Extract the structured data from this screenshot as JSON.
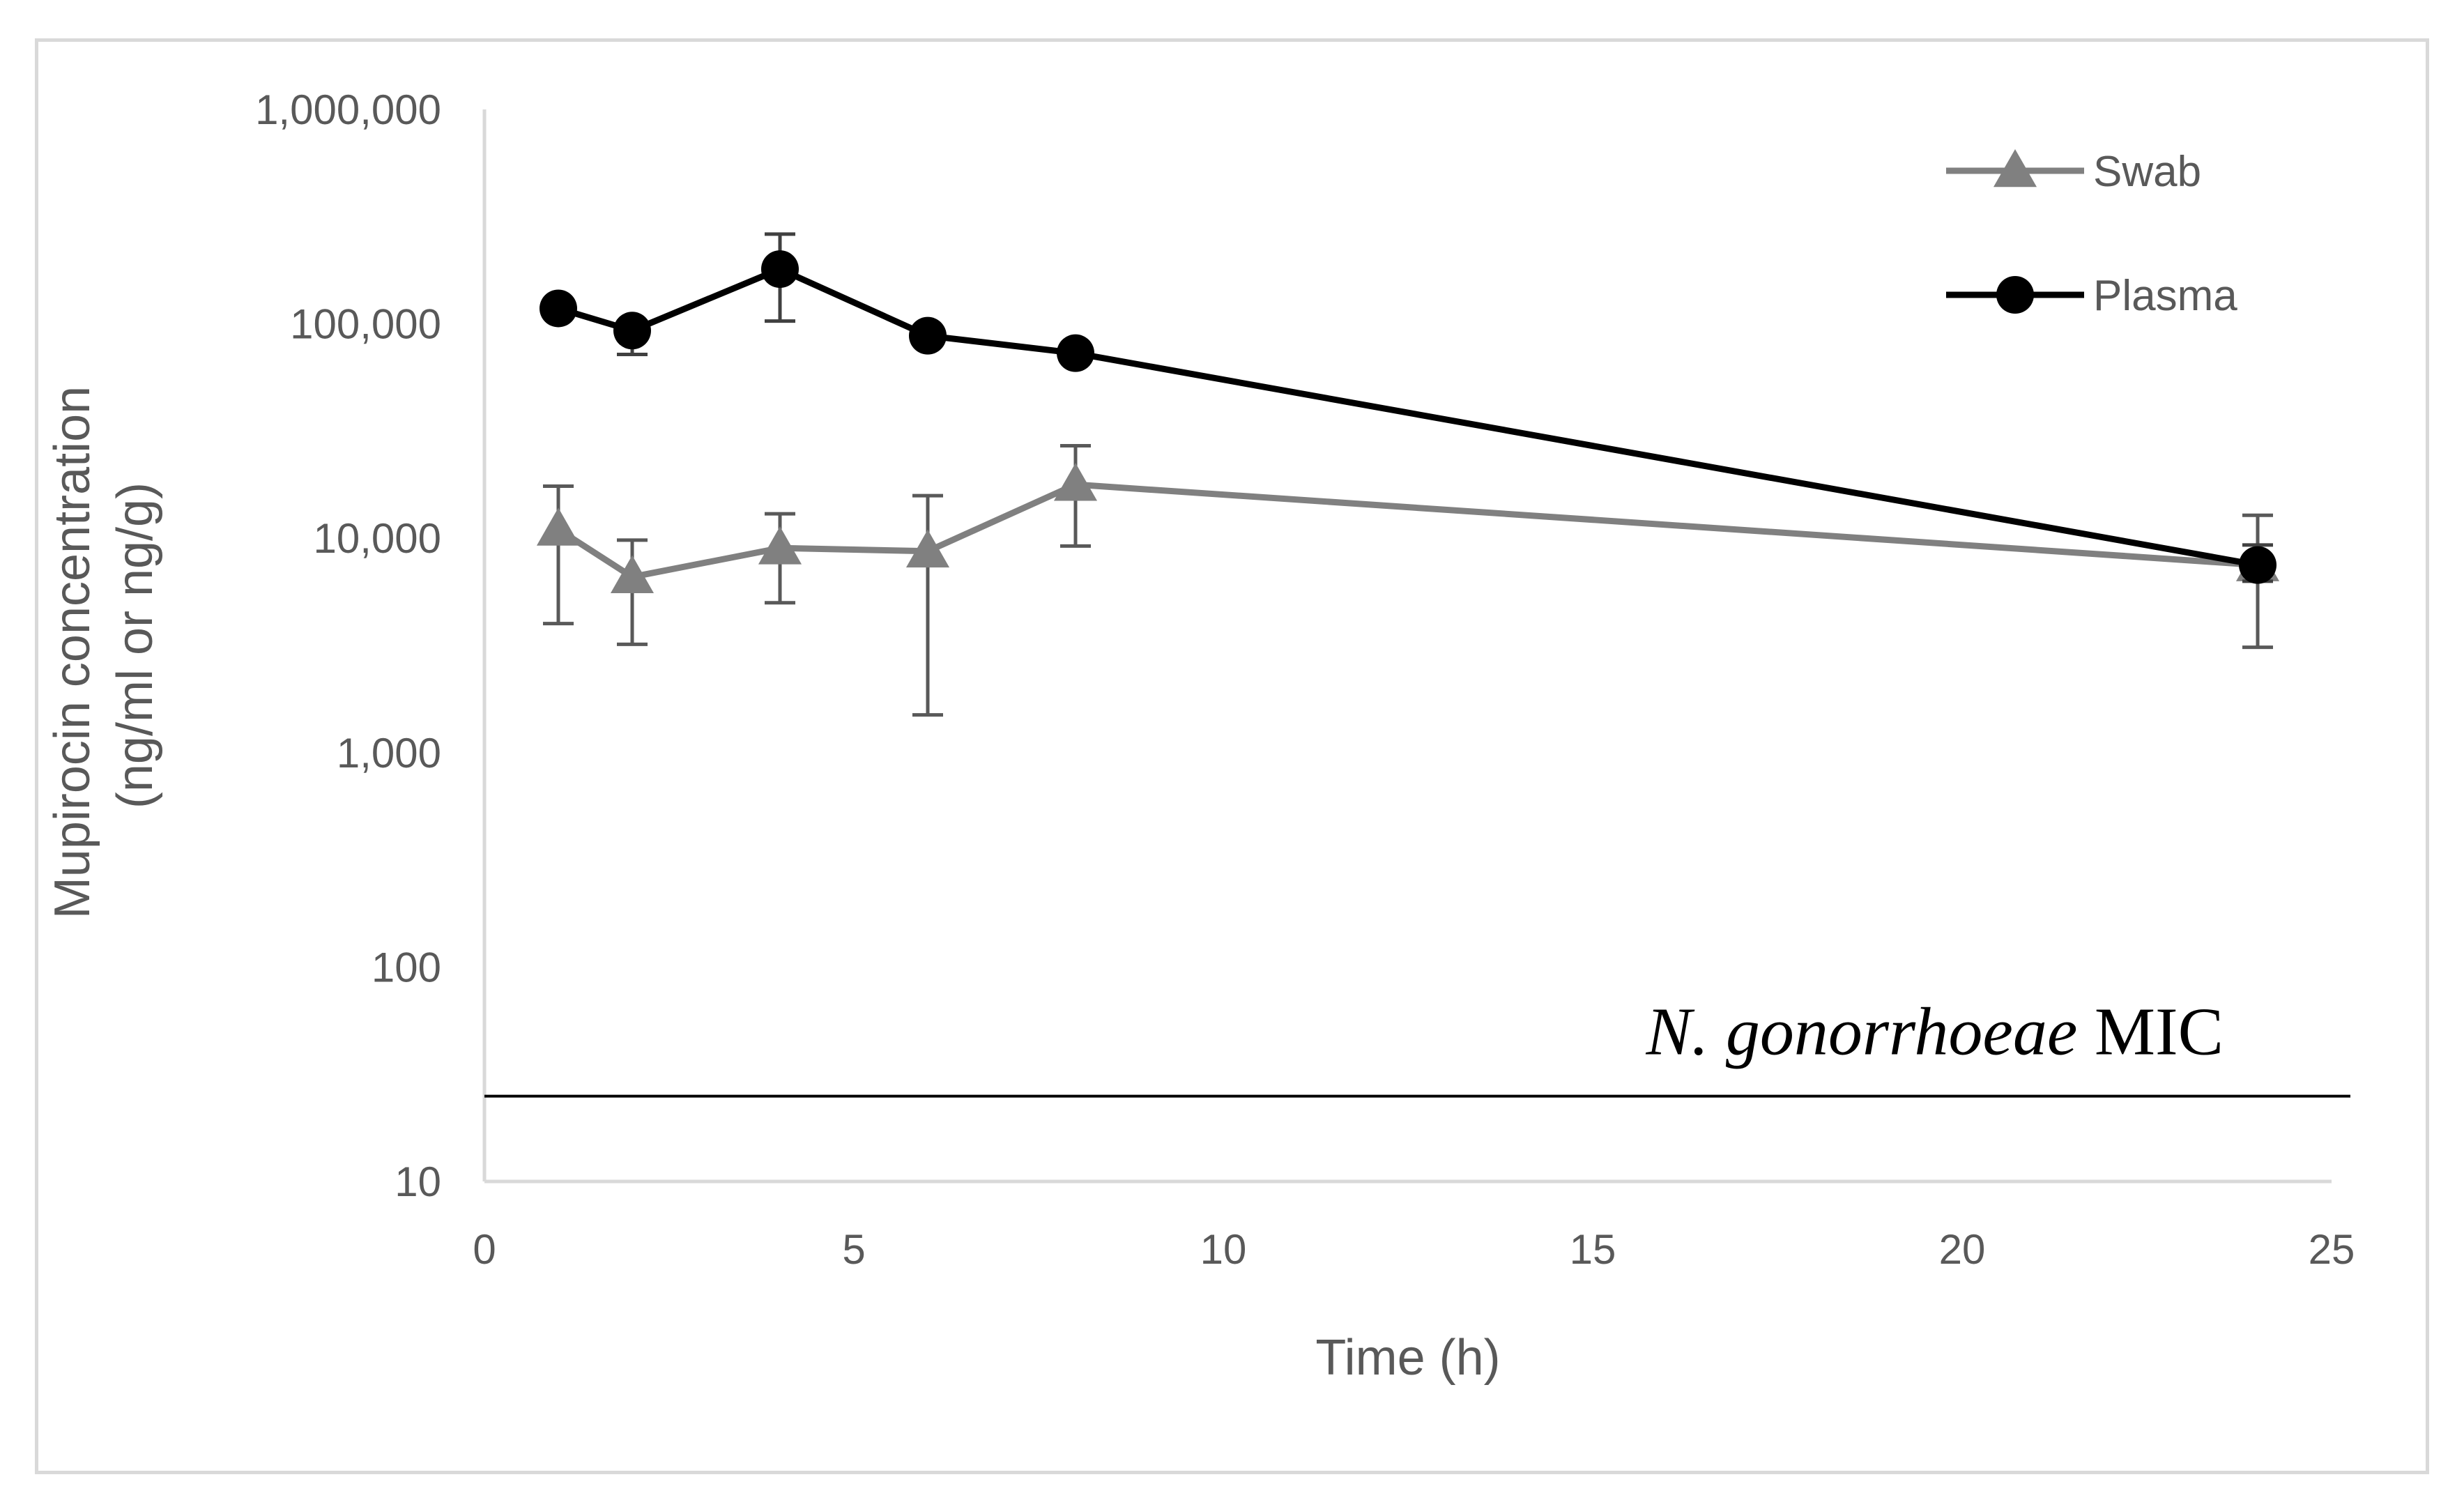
{
  "chart_data": {
    "type": "line",
    "title": "",
    "xlabel": "Time (h)",
    "ylabel_lines": [
      "Mupirocin concentration",
      "(ng/ml or ng/g)"
    ],
    "xlim": [
      0,
      25
    ],
    "ylim": [
      10,
      1000000
    ],
    "yscale": "log",
    "x_ticks": [
      0,
      5,
      10,
      15,
      20,
      25
    ],
    "x_tick_labels": [
      "0",
      "5",
      "10",
      "15",
      "20",
      "25"
    ],
    "y_ticks": [
      10,
      100,
      1000,
      10000,
      100000,
      1000000
    ],
    "y_tick_labels": [
      "10",
      "100",
      "1,000",
      "10,000",
      "100,000",
      "1,000,000"
    ],
    "grid": false,
    "legend_position": "top-right",
    "series": [
      {
        "name": "Swab",
        "color": "#808080",
        "marker": "triangle",
        "x": [
          1,
          2,
          4,
          6,
          8,
          24
        ],
        "values": [
          11000,
          6600,
          9000,
          8700,
          17800,
          7500
        ],
        "err_low": [
          4000,
          3200,
          5000,
          1500,
          9200,
          3100
        ],
        "err_high": [
          17500,
          9800,
          13000,
          15800,
          27000,
          12800
        ]
      },
      {
        "name": "Plasma",
        "color": "#000000",
        "marker": "circle",
        "x": [
          1,
          2,
          4,
          6,
          8,
          24
        ],
        "values": [
          118000,
          93000,
          180000,
          88000,
          73000,
          7500
        ],
        "err_low": [
          108000,
          72000,
          103000,
          82000,
          68000,
          6300
        ],
        "err_high": [
          130000,
          103000,
          262000,
          94000,
          79000,
          9300
        ]
      }
    ],
    "reference_lines": [
      {
        "name": "N. gonorrhoeae MIC",
        "label_italic": "N. gonorrhoeae",
        "label_regular": " MIC",
        "y": 25,
        "color": "#000000"
      }
    ]
  }
}
